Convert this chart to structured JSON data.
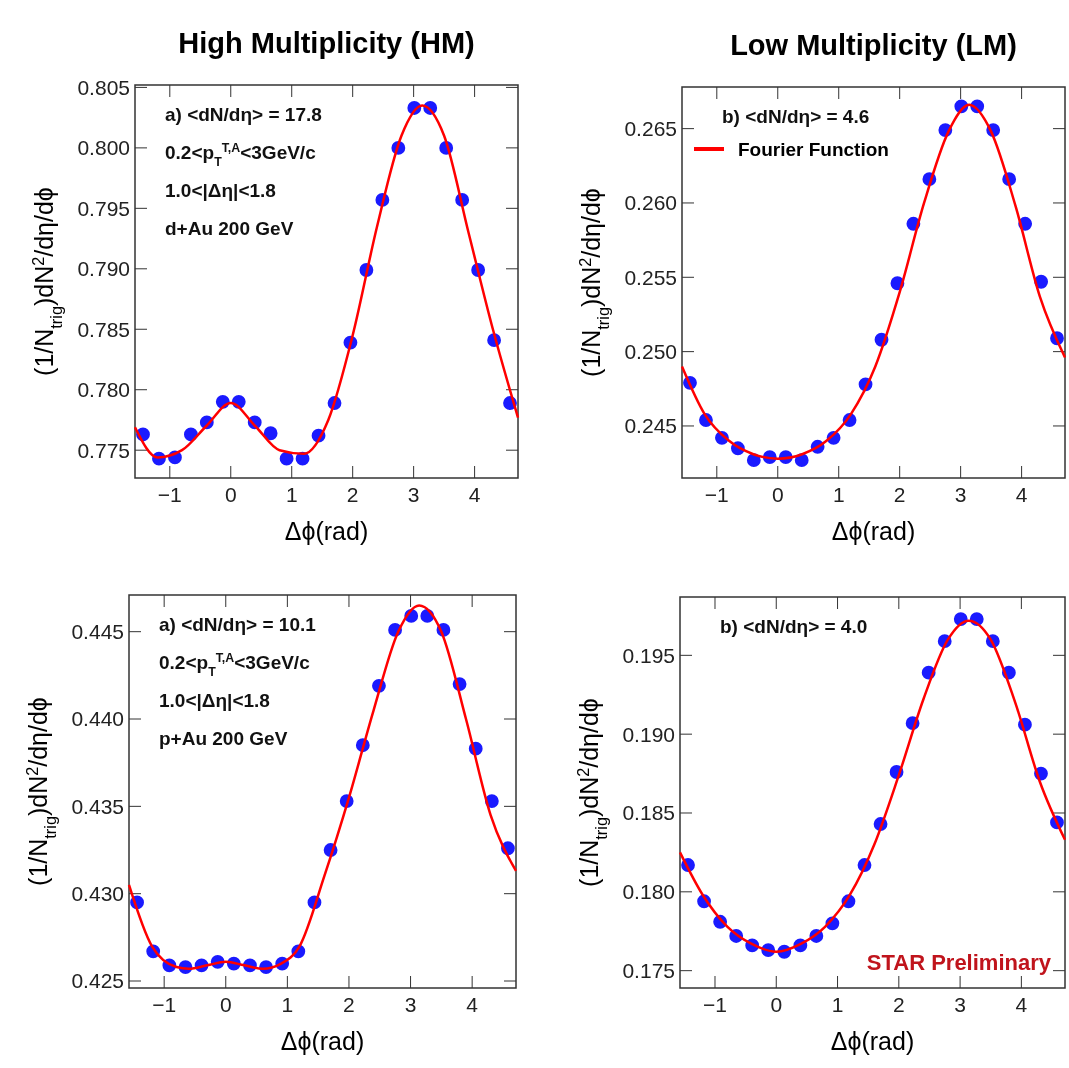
{
  "chart_data": [
    {
      "type": "scatter",
      "title": "High Multiplicity (HM)",
      "xlabel": "Δϕ(rad)",
      "ylabel": "(1/N$_{trig}$)dN$^{2}$/dη/dϕ",
      "annotations": [
        "a) <dN/dη> = 17.8",
        "0.2<p$_{T}$$^{T,A}$<3GeV/c",
        "1.0<|Δη|<1.8",
        "d+Au 200 GeV"
      ],
      "xlim": [
        -1.571,
        4.712
      ],
      "xticks": [
        -1,
        0,
        1,
        2,
        3,
        4
      ],
      "ylim": [
        0.7727,
        0.8052
      ],
      "yticks": [
        0.775,
        {
          "value": 0.78,
          "label": "0.780"
        },
        0.785,
        {
          "value": 0.79,
          "label": "0.790"
        },
        0.795,
        {
          "value": 0.8,
          "label": "0.800"
        },
        0.805
      ],
      "x": [
        -1.44,
        -1.178,
        -0.916,
        -0.654,
        -0.393,
        -0.131,
        0.131,
        0.393,
        0.654,
        0.916,
        1.178,
        1.44,
        1.702,
        1.963,
        2.225,
        2.487,
        2.749,
        3.011,
        3.272,
        3.534,
        3.796,
        4.058,
        4.32,
        4.581
      ],
      "series": [
        {
          "marker": "circle",
          "color": "#1a1aff",
          "values": [
            0.7763,
            0.7743,
            0.7744,
            0.7763,
            0.7773,
            0.779,
            0.779,
            0.7773,
            0.7764,
            0.7743,
            0.7743,
            0.7762,
            0.7789,
            0.7839,
            0.7899,
            0.7957,
            0.8,
            0.8033,
            0.8033,
            0.8,
            0.7957,
            0.7899,
            0.7841,
            0.7789
          ]
        },
        {
          "type": "line",
          "color": "#ff0000",
          "line_style": "solid",
          "x": [
            -1.571,
            -1.2,
            -0.8,
            -0.4,
            0,
            0.4,
            0.8,
            1.2,
            1.6,
            2.0,
            2.4,
            2.8,
            3.14,
            3.5,
            3.9,
            4.3,
            4.712
          ],
          "values": [
            0.7769,
            0.7744,
            0.775,
            0.777,
            0.7789,
            0.777,
            0.775,
            0.7747,
            0.7775,
            0.7845,
            0.7935,
            0.801,
            0.8035,
            0.801,
            0.793,
            0.785,
            0.7777
          ]
        }
      ]
    },
    {
      "type": "scatter",
      "title": "Low Multiplicity (LM)",
      "xlabel": "Δϕ(rad)",
      "ylabel": "(1/N$_{trig}$)dN$^{2}$/dη/dϕ",
      "annotations": [
        "b) <dN/dη> = 4.6"
      ],
      "legend": "top left",
      "xlim": [
        -1.571,
        4.712
      ],
      "xticks": [
        -1,
        0,
        1,
        2,
        3,
        4
      ],
      "ylim": [
        0.2415,
        0.2678
      ],
      "yticks": [
        0.245,
        {
          "value": 0.25,
          "label": "0.250"
        },
        0.255,
        {
          "value": 0.26,
          "label": "0.260"
        },
        0.265
      ],
      "x": [
        -1.44,
        -1.178,
        -0.916,
        -0.654,
        -0.393,
        -0.131,
        0.131,
        0.393,
        0.654,
        0.916,
        1.178,
        1.44,
        1.702,
        1.963,
        2.225,
        2.487,
        2.749,
        3.011,
        3.272,
        3.534,
        3.796,
        4.058,
        4.32,
        4.581
      ],
      "series": [
        {
          "marker": "circle",
          "color": "#1a1aff",
          "values": [
            0.2479,
            0.2454,
            0.2442,
            0.2435,
            0.2427,
            0.2429,
            0.2429,
            0.2427,
            0.2436,
            0.2442,
            0.2454,
            0.2478,
            0.2508,
            0.2546,
            0.2586,
            0.2616,
            0.2649,
            0.2665,
            0.2665,
            0.2649,
            0.2616,
            0.2586,
            0.2547,
            0.2509
          ]
        },
        {
          "type": "line",
          "name": "Fourier Function",
          "color": "#ff0000",
          "line_style": "solid",
          "x": [
            -1.571,
            -1.2,
            -0.8,
            -0.4,
            0,
            0.4,
            0.8,
            1.2,
            1.6,
            2.0,
            2.4,
            2.8,
            3.14,
            3.5,
            3.9,
            4.3,
            4.712
          ],
          "values": [
            0.249,
            0.2458,
            0.244,
            0.2431,
            0.2428,
            0.2431,
            0.244,
            0.2458,
            0.249,
            0.254,
            0.26,
            0.2648,
            0.2666,
            0.2648,
            0.2598,
            0.2537,
            0.2496
          ]
        }
      ]
    },
    {
      "type": "scatter",
      "xlabel": "Δϕ(rad)",
      "ylabel": "(1/N$_{trig}$)dN$^{2}$/dη/dϕ",
      "annotations": [
        "a) <dN/dη> = 10.1",
        "0.2<p$_{T}$$^{T,A}$<3GeV/c",
        "1.0<|Δη|<1.8",
        "p+Au 200 GeV"
      ],
      "xlim": [
        -1.571,
        4.712
      ],
      "xticks": [
        -1,
        0,
        1,
        2,
        3,
        4
      ],
      "ylim": [
        0.4246,
        0.4471
      ],
      "yticks": [
        0.425,
        {
          "value": 0.43,
          "label": "0.430"
        },
        0.435,
        {
          "value": 0.44,
          "label": "0.440"
        },
        0.445
      ],
      "x": [
        -1.44,
        -1.178,
        -0.916,
        -0.654,
        -0.393,
        -0.131,
        0.131,
        0.393,
        0.654,
        0.916,
        1.178,
        1.44,
        1.702,
        1.963,
        2.225,
        2.487,
        2.749,
        3.011,
        3.272,
        3.534,
        3.796,
        4.058,
        4.32,
        4.581
      ],
      "series": [
        {
          "marker": "circle",
          "color": "#1a1aff",
          "values": [
            0.4295,
            0.4267,
            0.4259,
            0.4258,
            0.4259,
            0.4261,
            0.426,
            0.4259,
            0.4258,
            0.426,
            0.4267,
            0.4295,
            0.4325,
            0.4353,
            0.4385,
            0.4419,
            0.4451,
            0.4459,
            0.4459,
            0.4451,
            0.442,
            0.4383,
            0.4353,
            0.4326
          ]
        },
        {
          "type": "line",
          "color": "#ff0000",
          "line_style": "solid",
          "x": [
            -1.571,
            -1.2,
            -0.8,
            -0.6,
            -0.3,
            0,
            0.3,
            0.6,
            0.9,
            1.2,
            1.6,
            2.0,
            2.4,
            2.8,
            3.14,
            3.5,
            3.9,
            4.3,
            4.712
          ],
          "values": [
            0.4305,
            0.427,
            0.4258,
            0.4257,
            0.4259,
            0.4261,
            0.4259,
            0.4257,
            0.426,
            0.427,
            0.431,
            0.4355,
            0.4405,
            0.445,
            0.4465,
            0.445,
            0.44,
            0.4345,
            0.4313
          ]
        }
      ]
    },
    {
      "type": "scatter",
      "xlabel": "Δϕ(rad)",
      "ylabel": "(1/N$_{trig}$)dN$^{2}$/dη/dϕ",
      "annotations": [
        "b) <dN/dη> = 4.0",
        "STAR Preliminary"
      ],
      "xlim": [
        -1.571,
        4.712
      ],
      "xticks": [
        -1,
        0,
        1,
        2,
        3,
        4
      ],
      "ylim": [
        0.1739,
        0.1987
      ],
      "yticks": [
        0.175,
        {
          "value": 0.18,
          "label": "0.180"
        },
        0.185,
        {
          "value": 0.19,
          "label": "0.190"
        },
        0.195
      ],
      "x": [
        -1.44,
        -1.178,
        -0.916,
        -0.654,
        -0.393,
        -0.131,
        0.131,
        0.393,
        0.654,
        0.916,
        1.178,
        1.44,
        1.702,
        1.963,
        2.225,
        2.487,
        2.749,
        3.011,
        3.272,
        3.534,
        3.796,
        4.058,
        4.32,
        4.581
      ],
      "series": [
        {
          "marker": "circle",
          "color": "#1a1aff",
          "values": [
            0.1817,
            0.1794,
            0.1781,
            0.1772,
            0.1766,
            0.1763,
            0.1762,
            0.1766,
            0.1772,
            0.178,
            0.1794,
            0.1817,
            0.1843,
            0.1876,
            0.1907,
            0.1939,
            0.1959,
            0.1973,
            0.1973,
            0.1959,
            0.1939,
            0.1906,
            0.1875,
            0.1844
          ]
        },
        {
          "type": "line",
          "color": "#ff0000",
          "line_style": "solid",
          "x": [
            -1.571,
            -1.2,
            -0.8,
            -0.4,
            0,
            0.4,
            0.8,
            1.2,
            1.6,
            2.0,
            2.4,
            2.8,
            3.14,
            3.5,
            3.9,
            4.3,
            4.712
          ],
          "values": [
            0.1825,
            0.1798,
            0.1778,
            0.1767,
            0.1762,
            0.1767,
            0.1778,
            0.1798,
            0.183,
            0.1874,
            0.1922,
            0.196,
            0.1972,
            0.196,
            0.192,
            0.187,
            0.1833
          ]
        }
      ]
    }
  ]
}
